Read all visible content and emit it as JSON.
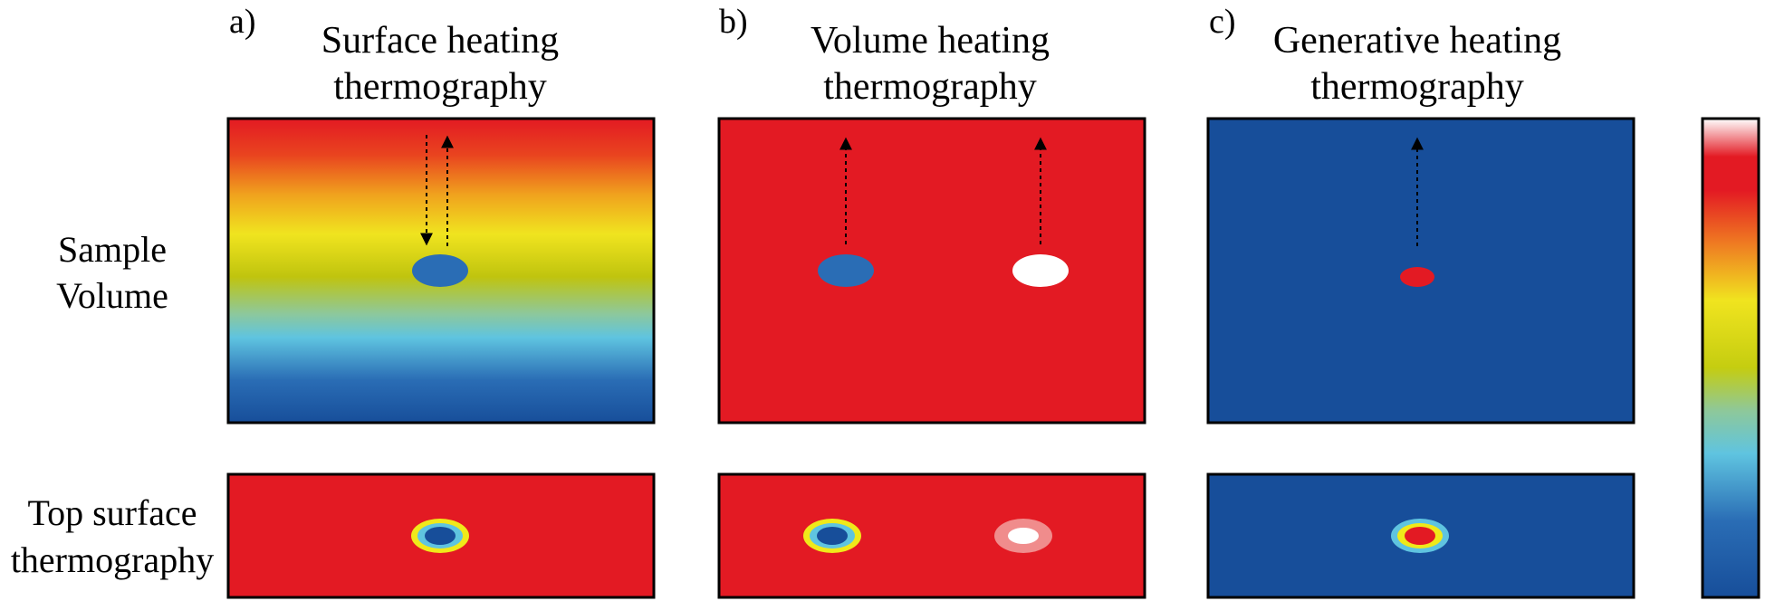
{
  "columns": [
    {
      "letter": "a)",
      "title_line1": "Surface heating",
      "title_line2": "thermography"
    },
    {
      "letter": "b)",
      "title_line1": "Volume heating",
      "title_line2": "thermography"
    },
    {
      "letter": "c)",
      "title_line1": "Generative heating",
      "title_line2": "thermography"
    }
  ],
  "rows": {
    "volume_label_line1": "Sample",
    "volume_label_line2": "Volume",
    "surface_label_line1": "Top surface",
    "surface_label_line2": "thermography"
  },
  "colors": {
    "red": "#e31a23",
    "blue": "#174e9a",
    "defect_blue": "#2a6db5",
    "white": "#ffffff",
    "yellow": "#f0e91a",
    "light_blue": "#5fc4e0",
    "pink": "#f08c8c"
  },
  "colorbar": {
    "stops": [
      "#ffffff",
      "#e31a23",
      "#ef7a22",
      "#f0e41f",
      "#c5cd10",
      "#5fc4e0",
      "#2a6db5",
      "#174e9a"
    ]
  }
}
